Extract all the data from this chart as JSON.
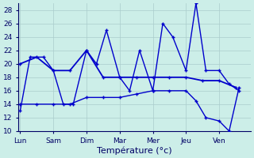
{
  "title": "Température (°c)",
  "background_color": "#cceee8",
  "grid_color": "#aacccc",
  "line_color": "#0000cc",
  "x_labels": [
    "Lun",
    "Sam",
    "Dim",
    "Mar",
    "Mer",
    "Jeu",
    "Ven"
  ],
  "x_ticks": [
    0,
    1,
    2,
    3,
    4,
    5,
    6
  ],
  "ylim": [
    10,
    29
  ],
  "yticks": [
    10,
    12,
    14,
    16,
    18,
    20,
    22,
    24,
    26,
    28
  ],
  "xlim": [
    -0.05,
    6.95
  ],
  "line1_x": [
    0.0,
    0.3,
    0.7,
    1.0,
    1.3,
    1.6,
    2.0,
    2.3,
    2.6,
    3.0,
    3.3,
    3.6,
    4.0,
    4.3,
    4.6,
    5.0,
    5.3,
    5.6,
    6.0,
    6.3,
    6.6
  ],
  "line1_y": [
    13,
    21,
    21,
    19,
    14,
    14,
    22,
    20,
    25,
    18,
    16,
    22,
    16,
    26,
    24,
    19,
    29,
    19,
    19,
    17,
    16
  ],
  "line2_x": [
    0.0,
    0.5,
    1.0,
    1.5,
    2.0,
    2.5,
    3.0,
    3.5,
    4.0,
    4.5,
    5.0,
    5.5,
    6.0,
    6.5
  ],
  "line2_y": [
    20,
    21,
    19,
    19,
    22,
    18,
    18,
    18,
    18,
    18,
    18,
    17.5,
    17.5,
    16.5
  ],
  "line3_x": [
    0.0,
    0.5,
    1.0,
    1.5,
    2.0,
    2.5,
    3.0,
    3.5,
    4.0,
    4.5,
    5.0,
    5.3,
    5.6,
    6.0,
    6.3,
    6.6
  ],
  "line3_y": [
    14,
    14,
    14,
    14,
    15,
    15,
    15,
    15.5,
    16,
    16,
    16,
    14.5,
    12,
    11.5,
    10,
    16.5
  ]
}
